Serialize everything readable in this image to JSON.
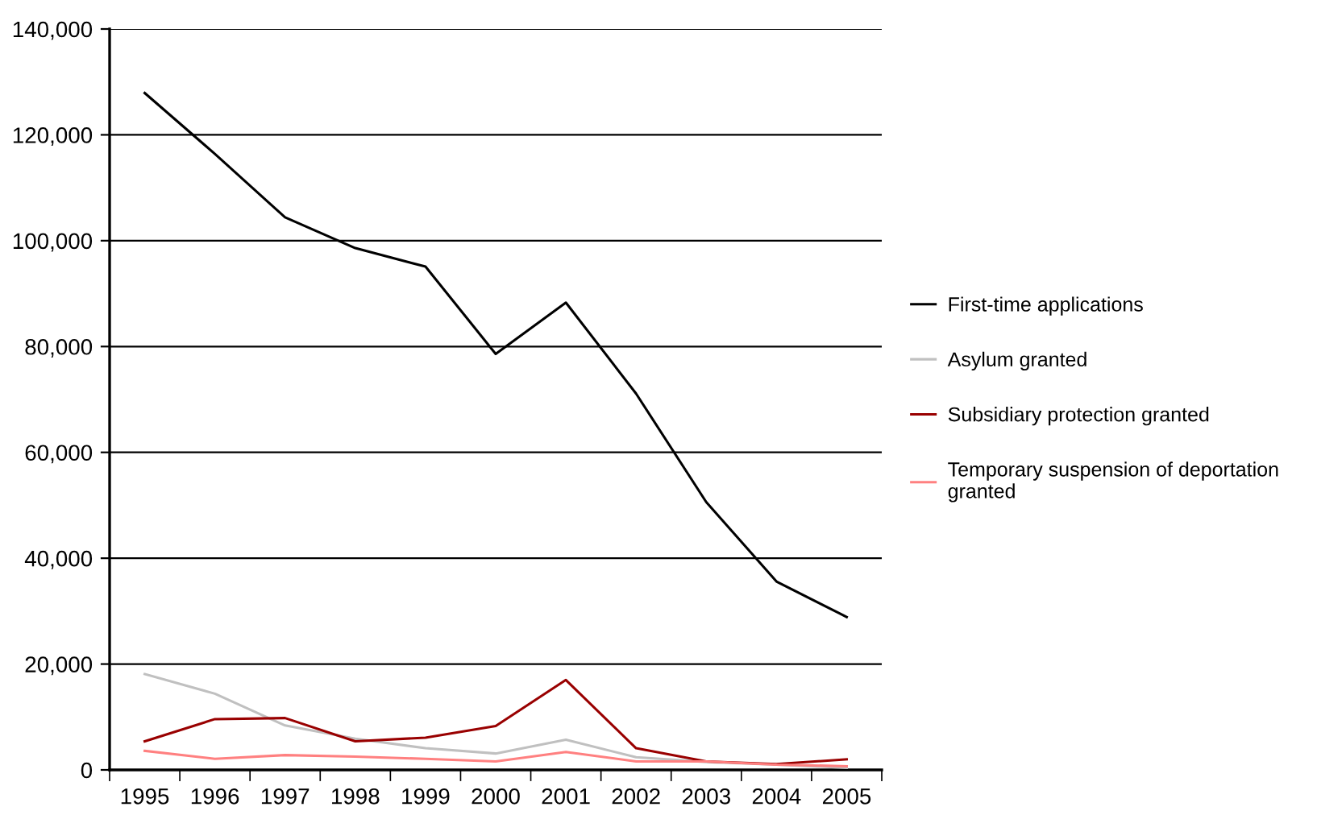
{
  "chart_data": {
    "type": "line",
    "categories": [
      "1995",
      "1996",
      "1997",
      "1998",
      "1999",
      "2000",
      "2001",
      "2002",
      "2003",
      "2004",
      "2005"
    ],
    "series": [
      {
        "name": "First-time applications",
        "color": "#000000",
        "values": [
          127900,
          116400,
          104400,
          98600,
          95100,
          78600,
          88300,
          71100,
          50600,
          35600,
          28900
        ]
      },
      {
        "name": "Asylum granted",
        "color": "#c0c0c0",
        "values": [
          18100,
          14400,
          8400,
          5900,
          4100,
          3100,
          5700,
          2400,
          1500,
          1000,
          400
        ]
      },
      {
        "name": "Subsidiary protection granted",
        "color": "#990000",
        "values": [
          5400,
          9600,
          9800,
          5400,
          6100,
          8300,
          17000,
          4100,
          1600,
          1100,
          2000
        ]
      },
      {
        "name": "Temporary suspension of deportation granted",
        "color": "#ff8080",
        "values": [
          3600,
          2100,
          2800,
          2500,
          2100,
          1600,
          3400,
          1600,
          1600,
          1000,
          700
        ]
      }
    ],
    "ylim": [
      0,
      140000
    ],
    "yticks": [
      {
        "value": 0,
        "label": "0"
      },
      {
        "value": 20000,
        "label": "20,000"
      },
      {
        "value": 40000,
        "label": "40,000"
      },
      {
        "value": 60000,
        "label": "60,000"
      },
      {
        "value": 80000,
        "label": "80,000"
      },
      {
        "value": 100000,
        "label": "100,000"
      },
      {
        "value": 120000,
        "label": "120,000"
      },
      {
        "value": 140000,
        "label": "140,000"
      }
    ],
    "grid": "y",
    "legend": "right",
    "marker": "none",
    "line_style": "solid"
  }
}
